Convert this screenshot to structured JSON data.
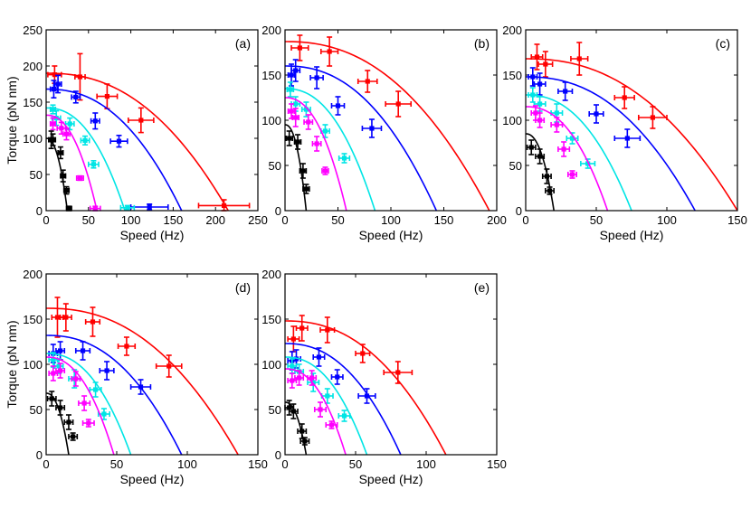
{
  "figure": {
    "ylabel_text": "Torque (pN nm)",
    "xlabel_text": "Speed (Hz)"
  },
  "colors": {
    "red": "#ff0000",
    "blue": "#0000ff",
    "cyan": "#00e5e5",
    "magenta": "#ff00ff",
    "black": "#000000"
  },
  "chart_data": [
    {
      "type": "scatter",
      "panel": "(a)",
      "xlabel": "Speed (Hz)",
      "ylabel": "Torque (pN nm)",
      "xlim": [
        0,
        250
      ],
      "ylim": [
        0,
        250
      ],
      "xticks": [
        "0",
        "50",
        "100",
        "150",
        "200",
        "250"
      ],
      "yticks": [
        "0",
        "50",
        "100",
        "150",
        "200",
        "250"
      ],
      "series": [
        {
          "name": "red",
          "color": "#ff0000",
          "stall": 190,
          "zero_speed": 215,
          "points": [
            [
              10,
              188,
              8,
              12
            ],
            [
              40,
              185,
              6,
              32
            ],
            [
              72,
              158,
              12,
              17
            ],
            [
              112,
              125,
              15,
              17
            ],
            [
              210,
              7,
              30,
              8
            ]
          ]
        },
        {
          "name": "blue",
          "color": "#0000ff",
          "stall": 168,
          "zero_speed": 160,
          "points": [
            [
              9,
              168,
              4,
              12
            ],
            [
              14,
              175,
              4,
              12
            ],
            [
              35,
              157,
              5,
              8
            ],
            [
              58,
              124,
              5,
              11
            ],
            [
              86,
              96,
              10,
              8
            ],
            [
              122,
              5,
              22,
              4
            ]
          ]
        },
        {
          "name": "cyan",
          "color": "#00e5e5",
          "stall": 142,
          "zero_speed": 93,
          "points": [
            [
              8,
              140,
              3,
              6
            ],
            [
              12,
              128,
              5,
              10
            ],
            [
              28,
              120,
              5,
              8
            ],
            [
              46,
              97,
              5,
              6
            ],
            [
              56,
              64,
              6,
              5
            ],
            [
              96,
              4,
              8,
              3
            ]
          ]
        },
        {
          "name": "magenta",
          "color": "#ff00ff",
          "stall": 132,
          "zero_speed": 60,
          "points": [
            [
              8,
              120,
              3,
              8
            ],
            [
              18,
              114,
              5,
              8
            ],
            [
              24,
              106,
              4,
              8
            ],
            [
              40,
              45,
              4,
              3
            ],
            [
              58,
              3,
              6,
              3
            ]
          ]
        },
        {
          "name": "black",
          "color": "#000000",
          "stall": 100,
          "zero_speed": 25,
          "points": [
            [
              6,
              98,
              3,
              12
            ],
            [
              8,
              98,
              3,
              8
            ],
            [
              17,
              80,
              3,
              8
            ],
            [
              20,
              48,
              3,
              8
            ],
            [
              24,
              28,
              3,
              5
            ],
            [
              27,
              3,
              3,
              3
            ]
          ]
        }
      ]
    },
    {
      "type": "scatter",
      "panel": "(b)",
      "xlabel": "Speed (Hz)",
      "ylabel": "",
      "xlim": [
        0,
        200
      ],
      "ylim": [
        0,
        200
      ],
      "xticks": [
        "0",
        "50",
        "100",
        "150",
        "200"
      ],
      "yticks": [
        "0",
        "50",
        "100",
        "150",
        "200"
      ],
      "series": [
        {
          "name": "red",
          "color": "#ff0000",
          "stall": 187,
          "zero_speed": 193,
          "points": [
            [
              14,
              180,
              8,
              14
            ],
            [
              42,
              176,
              8,
              16
            ],
            [
              78,
              143,
              9,
              12
            ],
            [
              107,
              118,
              12,
              14
            ]
          ]
        },
        {
          "name": "blue",
          "color": "#0000ff",
          "stall": 160,
          "zero_speed": 143,
          "points": [
            [
              6,
              150,
              3,
              12
            ],
            [
              10,
              155,
              4,
              12
            ],
            [
              30,
              147,
              6,
              12
            ],
            [
              50,
              116,
              6,
              10
            ],
            [
              82,
              91,
              9,
              10
            ]
          ]
        },
        {
          "name": "cyan",
          "color": "#00e5e5",
          "stall": 135,
          "zero_speed": 85,
          "points": [
            [
              5,
              134,
              3,
              8
            ],
            [
              10,
              118,
              4,
              8
            ],
            [
              20,
              112,
              4,
              8
            ],
            [
              38,
              88,
              4,
              7
            ],
            [
              56,
              58,
              5,
              5
            ]
          ]
        },
        {
          "name": "magenta",
          "color": "#ff00ff",
          "stall": 125,
          "zero_speed": 58,
          "points": [
            [
              6,
              110,
              3,
              8
            ],
            [
              10,
              103,
              3,
              10
            ],
            [
              22,
              98,
              4,
              8
            ],
            [
              30,
              74,
              4,
              8
            ],
            [
              38,
              44,
              3,
              4
            ]
          ]
        },
        {
          "name": "black",
          "color": "#000000",
          "stall": 95,
          "zero_speed": 20,
          "points": [
            [
              4,
              80,
              3,
              8
            ],
            [
              12,
              76,
              3,
              8
            ],
            [
              17,
              44,
              3,
              8
            ],
            [
              20,
              24,
              3,
              5
            ]
          ]
        }
      ]
    },
    {
      "type": "scatter",
      "panel": "(c)",
      "xlabel": "Speed (Hz)",
      "ylabel": "",
      "xlim": [
        0,
        150
      ],
      "ylim": [
        0,
        200
      ],
      "xticks": [
        "0",
        "50",
        "100",
        "150"
      ],
      "yticks": [
        "0",
        "50",
        "100",
        "150",
        "200"
      ],
      "series": [
        {
          "name": "red",
          "color": "#ff0000",
          "stall": 168,
          "zero_speed": 150,
          "points": [
            [
              8,
              170,
              4,
              14
            ],
            [
              14,
              162,
              5,
              14
            ],
            [
              38,
              168,
              6,
              18
            ],
            [
              70,
              125,
              7,
              12
            ],
            [
              90,
              103,
              10,
              12
            ]
          ]
        },
        {
          "name": "blue",
          "color": "#0000ff",
          "stall": 148,
          "zero_speed": 120,
          "points": [
            [
              5,
              148,
              3,
              10
            ],
            [
              10,
              140,
              4,
              12
            ],
            [
              28,
              132,
              5,
              10
            ],
            [
              50,
              107,
              5,
              10
            ],
            [
              72,
              80,
              9,
              10
            ]
          ]
        },
        {
          "name": "cyan",
          "color": "#00e5e5",
          "stall": 128,
          "zero_speed": 75,
          "points": [
            [
              5,
              128,
              3,
              8
            ],
            [
              10,
              118,
              4,
              8
            ],
            [
              22,
              108,
              4,
              10
            ],
            [
              33,
              80,
              4,
              6
            ],
            [
              44,
              52,
              5,
              5
            ]
          ]
        },
        {
          "name": "magenta",
          "color": "#ff00ff",
          "stall": 115,
          "zero_speed": 58,
          "points": [
            [
              7,
              108,
              3,
              8
            ],
            [
              10,
              100,
              3,
              8
            ],
            [
              22,
              95,
              4,
              8
            ],
            [
              27,
              68,
              4,
              8
            ],
            [
              33,
              40,
              3,
              4
            ]
          ]
        },
        {
          "name": "black",
          "color": "#000000",
          "stall": 85,
          "zero_speed": 20,
          "points": [
            [
              4,
              70,
              3,
              8
            ],
            [
              10,
              60,
              3,
              8
            ],
            [
              15,
              38,
              3,
              8
            ],
            [
              17,
              22,
              3,
              4
            ]
          ]
        }
      ]
    },
    {
      "type": "scatter",
      "panel": "(d)",
      "xlabel": "Speed (Hz)",
      "ylabel": "Torque (pN nm)",
      "xlim": [
        0,
        150
      ],
      "ylim": [
        0,
        200
      ],
      "xticks": [
        "0",
        "50",
        "100",
        "150"
      ],
      "yticks": [
        "0",
        "50",
        "100",
        "150",
        "200"
      ],
      "series": [
        {
          "name": "red",
          "color": "#ff0000",
          "stall": 162,
          "zero_speed": 136,
          "points": [
            [
              8,
              152,
              4,
              22
            ],
            [
              14,
              152,
              4,
              15
            ],
            [
              33,
              147,
              5,
              16
            ],
            [
              57,
              120,
              6,
              10
            ],
            [
              87,
              98,
              9,
              12
            ]
          ]
        },
        {
          "name": "blue",
          "color": "#0000ff",
          "stall": 132,
          "zero_speed": 96,
          "points": [
            [
              5,
              112,
              3,
              10
            ],
            [
              10,
              115,
              3,
              10
            ],
            [
              26,
              115,
              5,
              10
            ],
            [
              43,
              93,
              5,
              10
            ],
            [
              67,
              75,
              7,
              8
            ]
          ]
        },
        {
          "name": "cyan",
          "color": "#00e5e5",
          "stall": 112,
          "zero_speed": 60,
          "points": [
            [
              5,
              105,
              3,
              8
            ],
            [
              9,
              98,
              3,
              8
            ],
            [
              20,
              84,
              4,
              10
            ],
            [
              35,
              72,
              4,
              8
            ],
            [
              41,
              45,
              4,
              6
            ]
          ]
        },
        {
          "name": "magenta",
          "color": "#ff00ff",
          "stall": 108,
          "zero_speed": 48,
          "points": [
            [
              5,
              90,
              3,
              8
            ],
            [
              10,
              93,
              3,
              8
            ],
            [
              21,
              84,
              3,
              8
            ],
            [
              27,
              57,
              4,
              8
            ],
            [
              30,
              35,
              4,
              4
            ]
          ]
        },
        {
          "name": "black",
          "color": "#000000",
          "stall": 68,
          "zero_speed": 16,
          "points": [
            [
              4,
              62,
              3,
              8
            ],
            [
              10,
              52,
              3,
              8
            ],
            [
              16,
              36,
              3,
              8
            ],
            [
              19,
              20,
              3,
              4
            ]
          ]
        }
      ]
    },
    {
      "type": "scatter",
      "panel": "(e)",
      "xlabel": "Speed (Hz)",
      "ylabel": "",
      "xlim": [
        0,
        150
      ],
      "ylim": [
        0,
        200
      ],
      "xticks": [
        "0",
        "50",
        "100",
        "150"
      ],
      "yticks": [
        "0",
        "50",
        "100",
        "150",
        "200"
      ],
      "series": [
        {
          "name": "red",
          "color": "#ff0000",
          "stall": 148,
          "zero_speed": 114,
          "points": [
            [
              6,
              128,
              4,
              14
            ],
            [
              12,
              140,
              4,
              14
            ],
            [
              30,
              138,
              5,
              14
            ],
            [
              55,
              112,
              5,
              10
            ],
            [
              80,
              91,
              10,
              12
            ]
          ]
        },
        {
          "name": "blue",
          "color": "#0000ff",
          "stall": 123,
          "zero_speed": 82,
          "points": [
            [
              5,
              104,
              3,
              10
            ],
            [
              8,
              106,
              3,
              10
            ],
            [
              24,
              108,
              4,
              10
            ],
            [
              37,
              86,
              4,
              8
            ],
            [
              58,
              65,
              6,
              8
            ]
          ]
        },
        {
          "name": "cyan",
          "color": "#00e5e5",
          "stall": 108,
          "zero_speed": 58,
          "points": [
            [
              5,
              98,
              3,
              8
            ],
            [
              10,
              92,
              3,
              8
            ],
            [
              20,
              80,
              4,
              10
            ],
            [
              30,
              65,
              4,
              8
            ],
            [
              42,
              43,
              4,
              6
            ]
          ]
        },
        {
          "name": "magenta",
          "color": "#ff00ff",
          "stall": 95,
          "zero_speed": 43,
          "points": [
            [
              5,
              82,
              3,
              8
            ],
            [
              10,
              85,
              3,
              8
            ],
            [
              19,
              85,
              3,
              8
            ],
            [
              25,
              50,
              4,
              8
            ],
            [
              33,
              33,
              4,
              4
            ]
          ]
        },
        {
          "name": "black",
          "color": "#000000",
          "stall": 58,
          "zero_speed": 15,
          "points": [
            [
              3,
              52,
              3,
              8
            ],
            [
              6,
              48,
              3,
              8
            ],
            [
              12,
              26,
              3,
              8
            ],
            [
              14,
              15,
              3,
              4
            ]
          ]
        }
      ]
    }
  ]
}
